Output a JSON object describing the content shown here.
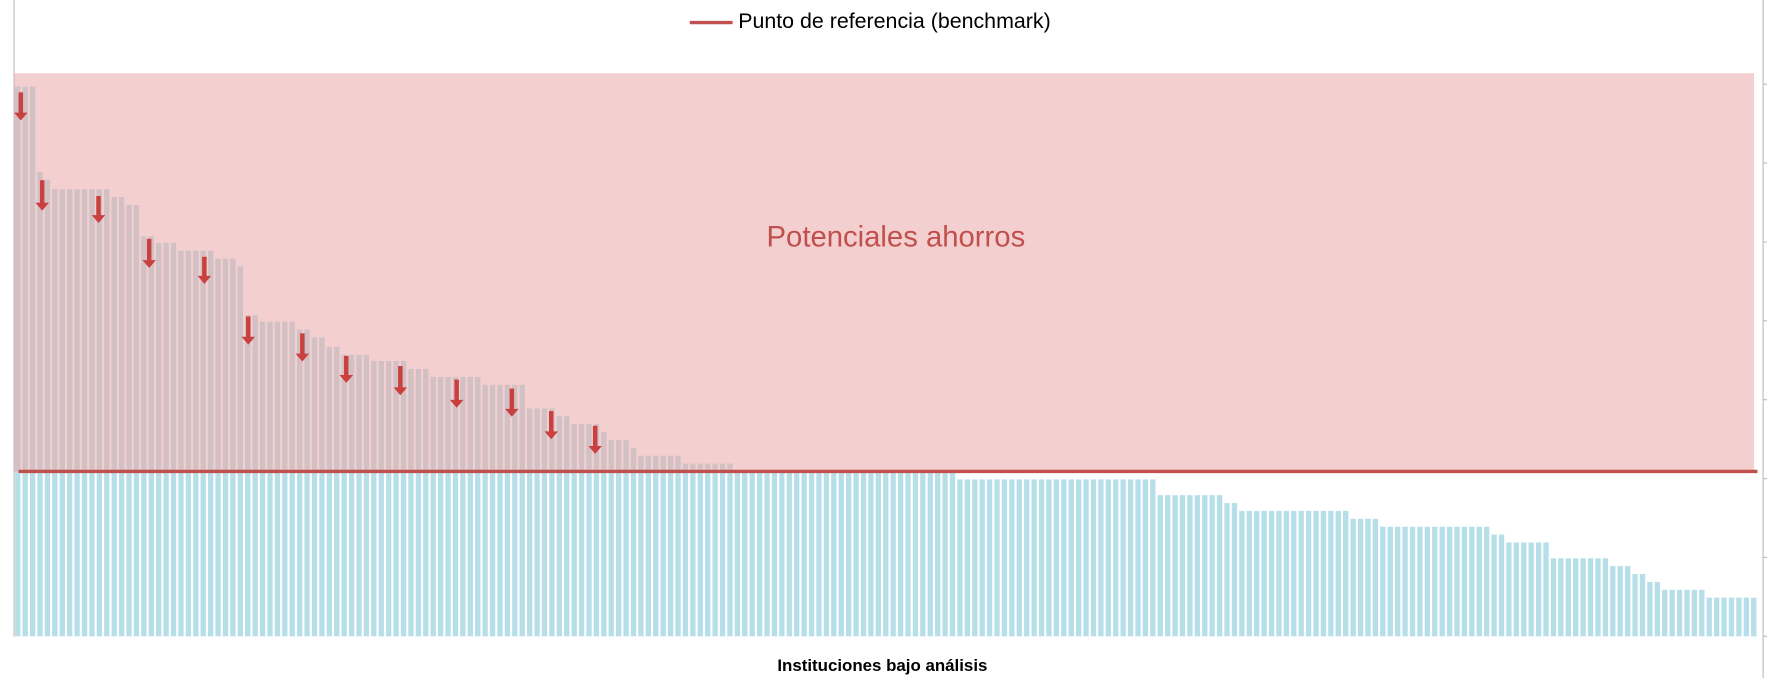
{
  "chart_data": {
    "type": "bar",
    "legend": "Punto de referencia (benchmark)",
    "annotation": "Potenciales ahorros",
    "xlabel": "Instituciones bajo análisis",
    "color": "#b7dfe9",
    "benchmark": {
      "value": 2.09,
      "color": "#c0504d"
    },
    "shade_color": "#e9a3a3",
    "ylim": [
      0,
      7.14
    ],
    "yticks": [
      0,
      1,
      2,
      3,
      4,
      5,
      6,
      7
    ],
    "values": [
      6.97,
      6.97,
      6.97,
      5.89,
      5.79,
      5.67,
      5.67,
      5.67,
      5.67,
      5.67,
      5.67,
      5.67,
      5.67,
      5.57,
      5.57,
      5.47,
      5.47,
      5.07,
      5.07,
      4.99,
      4.99,
      4.99,
      4.89,
      4.89,
      4.89,
      4.89,
      4.89,
      4.79,
      4.79,
      4.79,
      4.69,
      4.07,
      4.07,
      3.99,
      3.99,
      3.99,
      3.99,
      3.99,
      3.89,
      3.89,
      3.79,
      3.79,
      3.67,
      3.67,
      3.57,
      3.57,
      3.57,
      3.57,
      3.49,
      3.49,
      3.49,
      3.49,
      3.49,
      3.39,
      3.39,
      3.39,
      3.29,
      3.29,
      3.29,
      3.29,
      3.29,
      3.29,
      3.29,
      3.19,
      3.19,
      3.19,
      3.19,
      3.19,
      3.19,
      2.89,
      2.89,
      2.89,
      2.89,
      2.79,
      2.79,
      2.69,
      2.69,
      2.69,
      2.69,
      2.59,
      2.49,
      2.49,
      2.49,
      2.39,
      2.29,
      2.29,
      2.29,
      2.29,
      2.29,
      2.29,
      2.19,
      2.19,
      2.19,
      2.19,
      2.19,
      2.19,
      2.19,
      2.09,
      2.09,
      2.09,
      2.09,
      2.09,
      2.09,
      2.09,
      2.09,
      2.09,
      2.09,
      2.09,
      2.09,
      2.09,
      2.09,
      2.09,
      2.09,
      2.09,
      2.09,
      2.09,
      2.09,
      2.09,
      2.09,
      2.09,
      2.09,
      2.09,
      2.09,
      2.09,
      2.09,
      2.09,
      2.09,
      1.99,
      1.99,
      1.99,
      1.99,
      1.99,
      1.99,
      1.99,
      1.99,
      1.99,
      1.99,
      1.99,
      1.99,
      1.99,
      1.99,
      1.99,
      1.99,
      1.99,
      1.99,
      1.99,
      1.99,
      1.99,
      1.99,
      1.99,
      1.99,
      1.99,
      1.99,
      1.99,
      1.79,
      1.79,
      1.79,
      1.79,
      1.79,
      1.79,
      1.79,
      1.79,
      1.79,
      1.69,
      1.69,
      1.59,
      1.59,
      1.59,
      1.59,
      1.59,
      1.59,
      1.59,
      1.59,
      1.59,
      1.59,
      1.59,
      1.59,
      1.59,
      1.59,
      1.59,
      1.49,
      1.49,
      1.49,
      1.49,
      1.39,
      1.39,
      1.39,
      1.39,
      1.39,
      1.39,
      1.39,
      1.39,
      1.39,
      1.39,
      1.39,
      1.39,
      1.39,
      1.39,
      1.39,
      1.29,
      1.29,
      1.19,
      1.19,
      1.19,
      1.19,
      1.19,
      1.19,
      0.99,
      0.99,
      0.99,
      0.99,
      0.99,
      0.99,
      0.99,
      0.99,
      0.89,
      0.89,
      0.89,
      0.79,
      0.79,
      0.69,
      0.69,
      0.59,
      0.59,
      0.59,
      0.59,
      0.59,
      0.59,
      0.49,
      0.49,
      0.49,
      0.49,
      0.49,
      0.49,
      0.49
    ]
  }
}
